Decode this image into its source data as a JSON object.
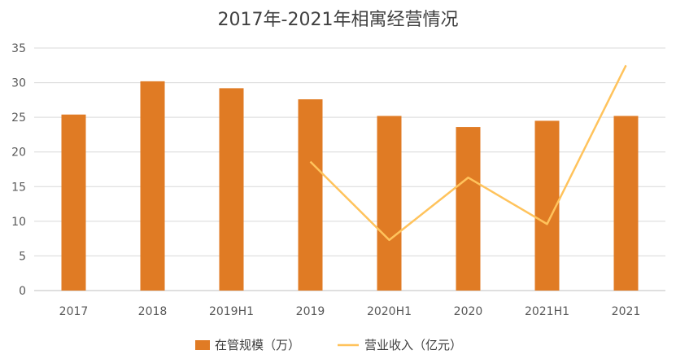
{
  "chart_data": {
    "type": "bar",
    "title": "2017年-2021年相寓经营情况",
    "xlabel": "",
    "ylabel": "",
    "categories": [
      "2017",
      "2018",
      "2019H1",
      "2019",
      "2020H1",
      "2020",
      "2021H1",
      "2021"
    ],
    "ylim": [
      0,
      35
    ],
    "yticks": [
      0,
      5,
      10,
      15,
      20,
      25,
      30,
      35
    ],
    "grid": true,
    "legend_position": "bottom",
    "series": [
      {
        "name": "在管规模（万）",
        "type": "bar",
        "color": "#E07B24",
        "values": [
          25.4,
          30.2,
          29.2,
          27.6,
          25.2,
          23.6,
          24.5,
          25.2
        ]
      },
      {
        "name": "营业收入（亿元）",
        "type": "line",
        "color": "#FFC35C",
        "values": [
          null,
          null,
          null,
          18.6,
          7.3,
          16.3,
          9.6,
          32.5
        ]
      }
    ]
  }
}
